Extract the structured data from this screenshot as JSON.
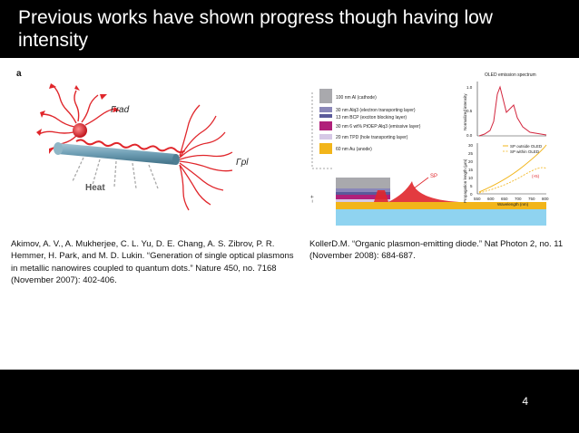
{
  "slide": {
    "title": "Previous works have shown progress though having low intensity",
    "page_number": "4"
  },
  "figure_a": {
    "panel_label": "a",
    "label_gamma_rad": "Γrad",
    "label_gamma_pl": "Γpl",
    "label_heat": "Heat"
  },
  "figure_b": {
    "layers": [
      {
        "label": "100 nm Al (cathode)",
        "color": "#a9a9ad"
      },
      {
        "label": "30 nm Alq3 (electron transporting layer)",
        "color": "#8a87b8"
      },
      {
        "label": "13 nm BCP (exciton blocking layer)",
        "color": "#5a5a9a"
      },
      {
        "label": "30 nm 6 wt% PtOEP:Alq3 (emissive layer)",
        "color": "#b0207a"
      },
      {
        "label": "20 nm TPD (hole transporting layer)",
        "color": "#d6c8e6"
      },
      {
        "label": "60 nm Au (anode)",
        "color": "#f2b51a"
      }
    ],
    "sp_label": "SP",
    "spectrum": {
      "title": "OLED emission spectrum",
      "ylabel": "Normalized intensity",
      "yticks": [
        "1.0",
        "0.5",
        "0.0"
      ]
    },
    "prop": {
      "ylabel": "Propagation length (μm)",
      "yticks": [
        "30",
        "25",
        "20",
        "15",
        "10",
        "5",
        "0"
      ],
      "xticks": [
        "550",
        "600",
        "650",
        "700",
        "750",
        "800"
      ],
      "xlabel": "Wavelength (nm)",
      "legend": [
        "SP outside OLED",
        "SP within OLED"
      ],
      "annotation": "(×5)"
    },
    "voltage_label": "− +"
  },
  "citations": {
    "left": "Akimov, A. V., A. Mukherjee, C. L. Yu, D. E. Chang, A. S. Zibrov, P. R. Hemmer, H. Park, and M. D. Lukin. “Generation of single optical plasmons in metallic nanowires coupled to quantum dots.” Nature 450, no. 7168 (November 2007): 402-406.",
    "right": "KollerD.M. “Organic plasmon-emitting diode.” Nat Photon 2, no. 11 (November 2008): 684-687."
  },
  "colors": {
    "background": "#000000",
    "content_bg": "#ffffff",
    "plasmon_red": "#e0262b",
    "wire_blue": "#6d9db3",
    "spectrum_red": "#d3263e",
    "prop_orange": "#f2b51a",
    "substrate": "#8fd3f0"
  }
}
